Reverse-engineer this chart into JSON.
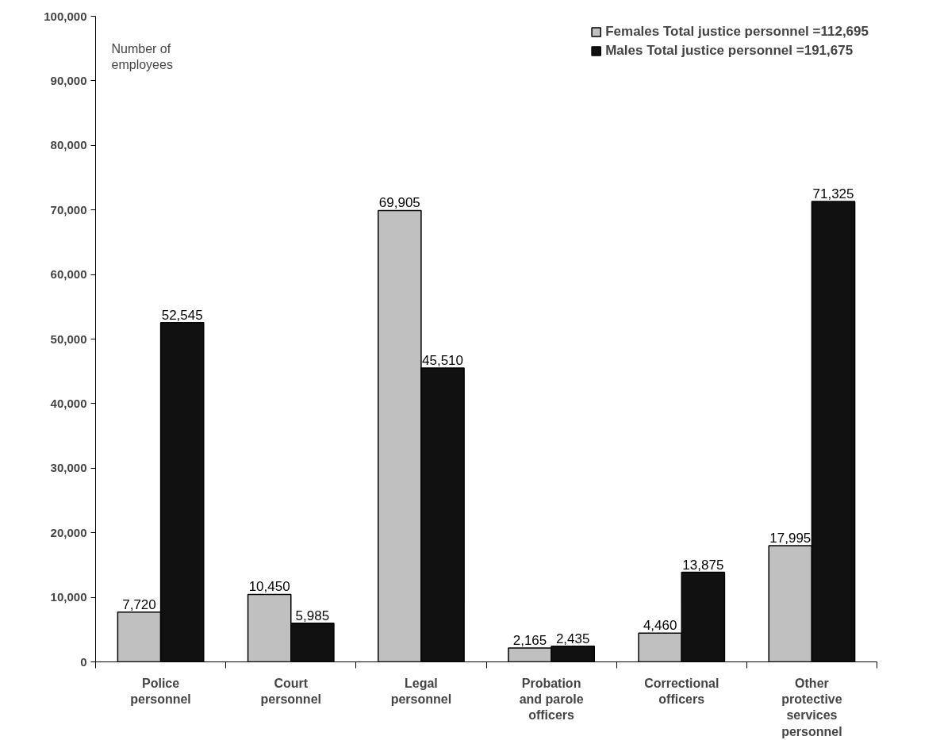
{
  "chart_data": {
    "type": "bar",
    "ylabel": "Number of\nemployees",
    "categories": [
      "Police\npersonnel",
      "Court\npersonnel",
      "Legal\npersonnel",
      "Probation\nand parole\nofficers",
      "Correctional\nofficers",
      "Other\nprotective\nservices\npersonnel"
    ],
    "series": [
      {
        "name": "Females Total justice personnel =112,695",
        "color": "#c0c0c0",
        "values": [
          7720,
          10450,
          69905,
          2165,
          4460,
          17995
        ],
        "value_labels": [
          "7,720",
          "10,450",
          "69,905",
          "2,165",
          "4,460",
          "17,995"
        ]
      },
      {
        "name": "Males Total justice personnel =191,675",
        "color": "#111111",
        "values": [
          52545,
          5985,
          45510,
          2435,
          13875,
          71325
        ],
        "value_labels": [
          "52,545",
          "5,985",
          "45,510",
          "2,435",
          "13,875",
          "71,325"
        ]
      }
    ],
    "ylim": [
      0,
      100000
    ],
    "yticks": [
      {
        "value": 0,
        "label": "0"
      },
      {
        "value": 10000,
        "label": "10,000"
      },
      {
        "value": 20000,
        "label": "20,000"
      },
      {
        "value": 30000,
        "label": "30,000"
      },
      {
        "value": 40000,
        "label": "40,000"
      },
      {
        "value": 50000,
        "label": "50,000"
      },
      {
        "value": 60000,
        "label": "60,000"
      },
      {
        "value": 70000,
        "label": "70,000"
      },
      {
        "value": 80000,
        "label": "80,000"
      },
      {
        "value": 90000,
        "label": "90,000"
      },
      {
        "value": 100000,
        "label": "100,000"
      }
    ],
    "grid": false,
    "legend": "top right"
  }
}
